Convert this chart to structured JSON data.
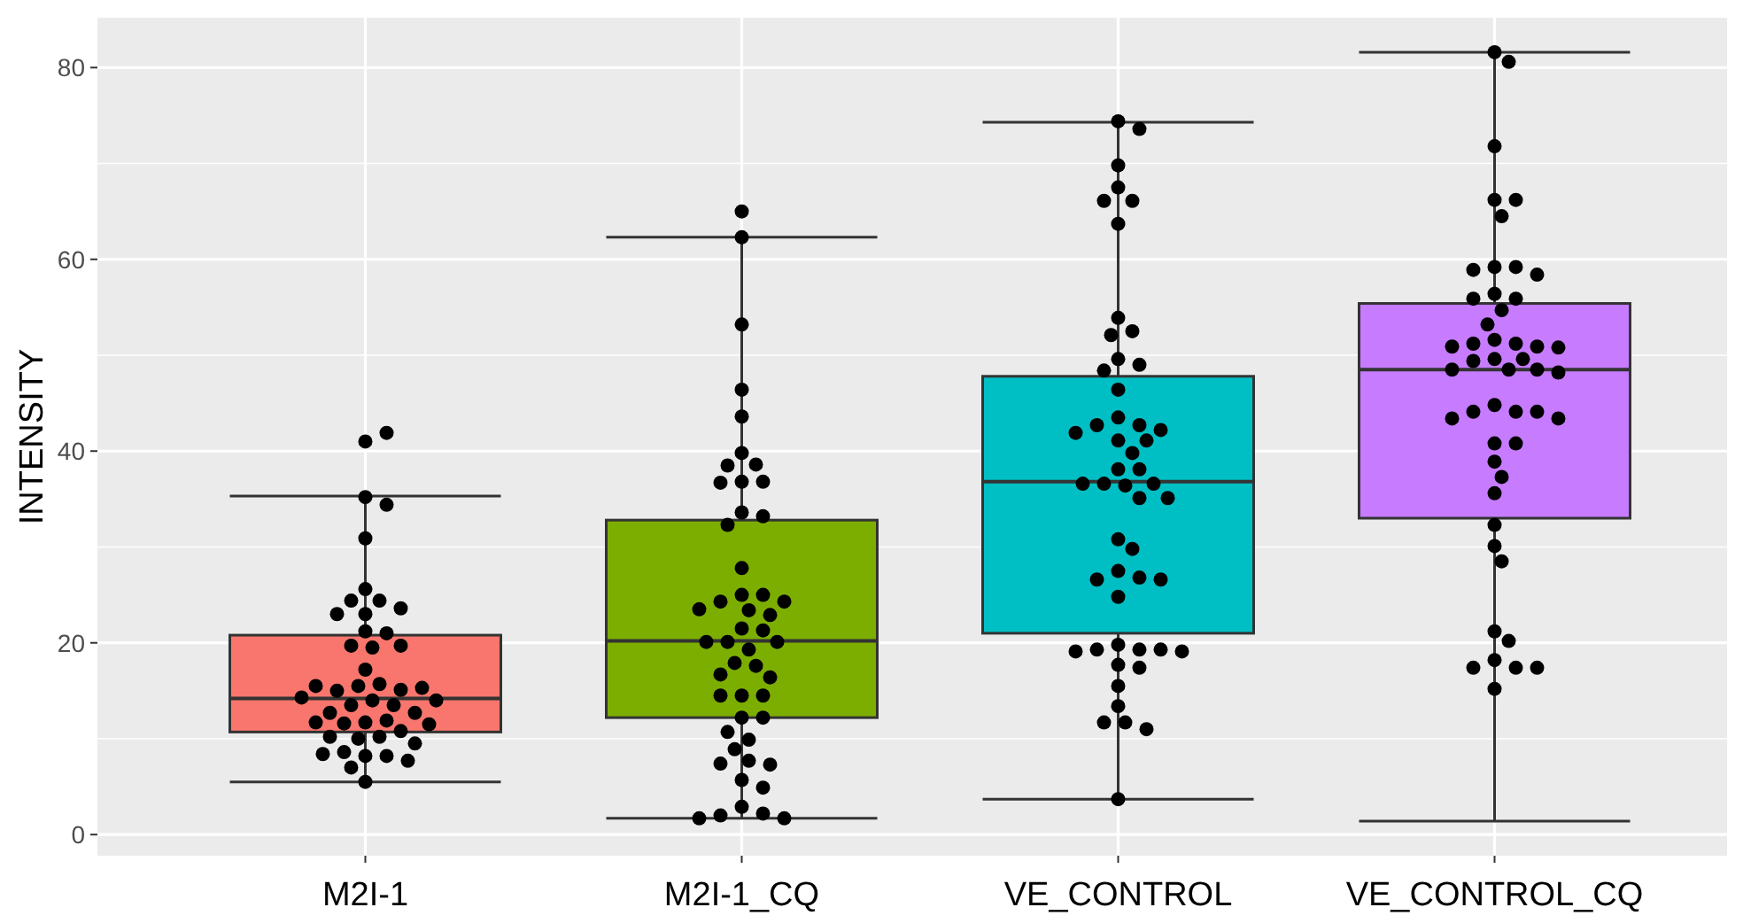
{
  "chart_data": {
    "type": "box",
    "ylabel": "INTENSITY",
    "categories": [
      "M2I-1",
      "M2I-1_CQ",
      "VE_CONTROL",
      "VE_CONTROL_CQ"
    ],
    "colors": [
      "#f8766d",
      "#7cae00",
      "#00bfc4",
      "#c77cff"
    ],
    "boxes": [
      {
        "low": 5.5,
        "q1": 10.7,
        "median": 14.2,
        "q3": 20.8,
        "high": 35.3
      },
      {
        "low": 1.7,
        "q1": 12.2,
        "median": 20.2,
        "q3": 32.8,
        "high": 62.3
      },
      {
        "low": 3.7,
        "q1": 21.0,
        "median": 36.8,
        "q3": 47.8,
        "high": 74.3
      },
      {
        "low": 1.4,
        "q1": 33.0,
        "median": 48.5,
        "q3": 55.4,
        "high": 81.6
      }
    ],
    "series": [
      {
        "type": "scatter",
        "color": "#000000",
        "x": [
          "M2I-1",
          "M2I-1",
          "M2I-1",
          "M2I-1",
          "M2I-1",
          "M2I-1",
          "M2I-1",
          "M2I-1",
          "M2I-1",
          "M2I-1",
          "M2I-1",
          "M2I-1",
          "M2I-1",
          "M2I-1",
          "M2I-1",
          "M2I-1",
          "M2I-1",
          "M2I-1",
          "M2I-1",
          "M2I-1",
          "M2I-1",
          "M2I-1",
          "M2I-1",
          "M2I-1",
          "M2I-1",
          "M2I-1",
          "M2I-1",
          "M2I-1",
          "M2I-1",
          "M2I-1",
          "M2I-1",
          "M2I-1",
          "M2I-1",
          "M2I-1",
          "M2I-1",
          "M2I-1",
          "M2I-1",
          "M2I-1",
          "M2I-1",
          "M2I-1",
          "M2I-1",
          "M2I-1",
          "M2I-1",
          "M2I-1",
          "M2I-1",
          "M2I-1",
          "M2I-1"
        ],
        "values": [
          41.0,
          41.9,
          35.2,
          34.4,
          30.9,
          25.6,
          24.4,
          24.4,
          23.6,
          23.0,
          23.0,
          21.2,
          21.0,
          19.7,
          19.7,
          19.5,
          17.2,
          15.7,
          15.5,
          15.0,
          15.1,
          15.5,
          15.3,
          14.3,
          14.0,
          13.5,
          13.5,
          14.0,
          12.7,
          12.7,
          11.7,
          11.9,
          11.6,
          11.7,
          11.5,
          10.8,
          10.2,
          10.2,
          10.0,
          9.5,
          8.2,
          8.2,
          8.6,
          8.4,
          7.7,
          7.0,
          5.5
        ]
      },
      {
        "type": "scatter",
        "color": "#000000",
        "x": [
          "M2I-1_CQ",
          "M2I-1_CQ",
          "M2I-1_CQ",
          "M2I-1_CQ",
          "M2I-1_CQ",
          "M2I-1_CQ",
          "M2I-1_CQ",
          "M2I-1_CQ",
          "M2I-1_CQ",
          "M2I-1_CQ",
          "M2I-1_CQ",
          "M2I-1_CQ",
          "M2I-1_CQ",
          "M2I-1_CQ",
          "M2I-1_CQ",
          "M2I-1_CQ",
          "M2I-1_CQ",
          "M2I-1_CQ",
          "M2I-1_CQ",
          "M2I-1_CQ",
          "M2I-1_CQ",
          "M2I-1_CQ",
          "M2I-1_CQ",
          "M2I-1_CQ",
          "M2I-1_CQ",
          "M2I-1_CQ",
          "M2I-1_CQ",
          "M2I-1_CQ",
          "M2I-1_CQ",
          "M2I-1_CQ",
          "M2I-1_CQ",
          "M2I-1_CQ",
          "M2I-1_CQ",
          "M2I-1_CQ",
          "M2I-1_CQ",
          "M2I-1_CQ",
          "M2I-1_CQ",
          "M2I-1_CQ",
          "M2I-1_CQ",
          "M2I-1_CQ",
          "M2I-1_CQ",
          "M2I-1_CQ",
          "M2I-1_CQ",
          "M2I-1_CQ",
          "M2I-1_CQ",
          "M2I-1_CQ",
          "M2I-1_CQ",
          "M2I-1_CQ",
          "M2I-1_CQ",
          "M2I-1_CQ"
        ],
        "values": [
          65.0,
          62.3,
          53.2,
          46.4,
          43.6,
          39.8,
          38.6,
          36.8,
          36.8,
          38.5,
          36.7,
          33.6,
          33.2,
          32.3,
          27.8,
          25.0,
          25.0,
          24.3,
          24.3,
          23.5,
          23.4,
          22.9,
          21.5,
          21.3,
          20.1,
          20.1,
          20.1,
          19.3,
          17.9,
          17.6,
          16.7,
          16.4,
          14.5,
          14.5,
          14.5,
          12.2,
          12.2,
          10.7,
          9.9,
          8.9,
          7.7,
          7.4,
          7.3,
          5.7,
          4.9,
          2.9,
          2.2,
          2.0,
          1.7,
          1.7
        ]
      },
      {
        "type": "scatter",
        "color": "#000000",
        "x": [
          "VE_CONTROL",
          "VE_CONTROL",
          "VE_CONTROL",
          "VE_CONTROL",
          "VE_CONTROL",
          "VE_CONTROL",
          "VE_CONTROL",
          "VE_CONTROL",
          "VE_CONTROL",
          "VE_CONTROL",
          "VE_CONTROL",
          "VE_CONTROL",
          "VE_CONTROL",
          "VE_CONTROL",
          "VE_CONTROL",
          "VE_CONTROL",
          "VE_CONTROL",
          "VE_CONTROL",
          "VE_CONTROL",
          "VE_CONTROL",
          "VE_CONTROL",
          "VE_CONTROL",
          "VE_CONTROL",
          "VE_CONTROL",
          "VE_CONTROL",
          "VE_CONTROL",
          "VE_CONTROL",
          "VE_CONTROL",
          "VE_CONTROL",
          "VE_CONTROL",
          "VE_CONTROL",
          "VE_CONTROL",
          "VE_CONTROL",
          "VE_CONTROL",
          "VE_CONTROL",
          "VE_CONTROL",
          "VE_CONTROL",
          "VE_CONTROL",
          "VE_CONTROL",
          "VE_CONTROL",
          "VE_CONTROL",
          "VE_CONTROL",
          "VE_CONTROL",
          "VE_CONTROL",
          "VE_CONTROL",
          "VE_CONTROL",
          "VE_CONTROL",
          "VE_CONTROL",
          "VE_CONTROL",
          "VE_CONTROL",
          "VE_CONTROL"
        ],
        "values": [
          74.4,
          73.6,
          69.8,
          67.5,
          66.1,
          66.1,
          63.7,
          53.9,
          52.5,
          52.1,
          49.6,
          49.0,
          48.4,
          46.4,
          43.5,
          42.7,
          42.7,
          42.2,
          41.9,
          41.1,
          41.1,
          39.8,
          38.1,
          38.1,
          36.6,
          36.6,
          36.6,
          36.4,
          35.1,
          35.1,
          30.8,
          29.8,
          27.5,
          26.8,
          26.6,
          26.6,
          24.8,
          19.8,
          19.3,
          19.3,
          19.3,
          19.1,
          19.1,
          17.7,
          17.4,
          15.5,
          13.4,
          11.7,
          11.7,
          11.0,
          3.7
        ]
      },
      {
        "type": "scatter",
        "color": "#000000",
        "x": [
          "VE_CONTROL_CQ",
          "VE_CONTROL_CQ",
          "VE_CONTROL_CQ",
          "VE_CONTROL_CQ",
          "VE_CONTROL_CQ",
          "VE_CONTROL_CQ",
          "VE_CONTROL_CQ",
          "VE_CONTROL_CQ",
          "VE_CONTROL_CQ",
          "VE_CONTROL_CQ",
          "VE_CONTROL_CQ",
          "VE_CONTROL_CQ",
          "VE_CONTROL_CQ",
          "VE_CONTROL_CQ",
          "VE_CONTROL_CQ",
          "VE_CONTROL_CQ",
          "VE_CONTROL_CQ",
          "VE_CONTROL_CQ",
          "VE_CONTROL_CQ",
          "VE_CONTROL_CQ",
          "VE_CONTROL_CQ",
          "VE_CONTROL_CQ",
          "VE_CONTROL_CQ",
          "VE_CONTROL_CQ",
          "VE_CONTROL_CQ",
          "VE_CONTROL_CQ",
          "VE_CONTROL_CQ",
          "VE_CONTROL_CQ",
          "VE_CONTROL_CQ",
          "VE_CONTROL_CQ",
          "VE_CONTROL_CQ",
          "VE_CONTROL_CQ",
          "VE_CONTROL_CQ",
          "VE_CONTROL_CQ",
          "VE_CONTROL_CQ",
          "VE_CONTROL_CQ",
          "VE_CONTROL_CQ",
          "VE_CONTROL_CQ",
          "VE_CONTROL_CQ",
          "VE_CONTROL_CQ",
          "VE_CONTROL_CQ",
          "VE_CONTROL_CQ",
          "VE_CONTROL_CQ",
          "VE_CONTROL_CQ",
          "VE_CONTROL_CQ",
          "VE_CONTROL_CQ",
          "VE_CONTROL_CQ",
          "VE_CONTROL_CQ",
          "VE_CONTROL_CQ"
        ],
        "values": [
          81.6,
          80.6,
          71.8,
          66.2,
          66.2,
          64.5,
          59.2,
          59.2,
          58.9,
          58.4,
          56.4,
          55.9,
          55.9,
          54.7,
          53.2,
          51.6,
          51.2,
          51.2,
          50.9,
          50.9,
          50.8,
          49.6,
          49.6,
          49.4,
          48.5,
          48.5,
          48.5,
          48.2,
          44.8,
          44.1,
          44.1,
          44.1,
          43.4,
          43.4,
          40.8,
          40.8,
          38.9,
          37.3,
          35.6,
          32.3,
          30.1,
          28.5,
          21.2,
          20.2,
          18.2,
          17.4,
          17.4,
          17.4,
          15.2
        ]
      }
    ],
    "ylim": [
      -2.2,
      85.2
    ],
    "yticks": [
      0,
      20,
      40,
      60,
      80
    ],
    "grid": true,
    "marker": "circle"
  }
}
